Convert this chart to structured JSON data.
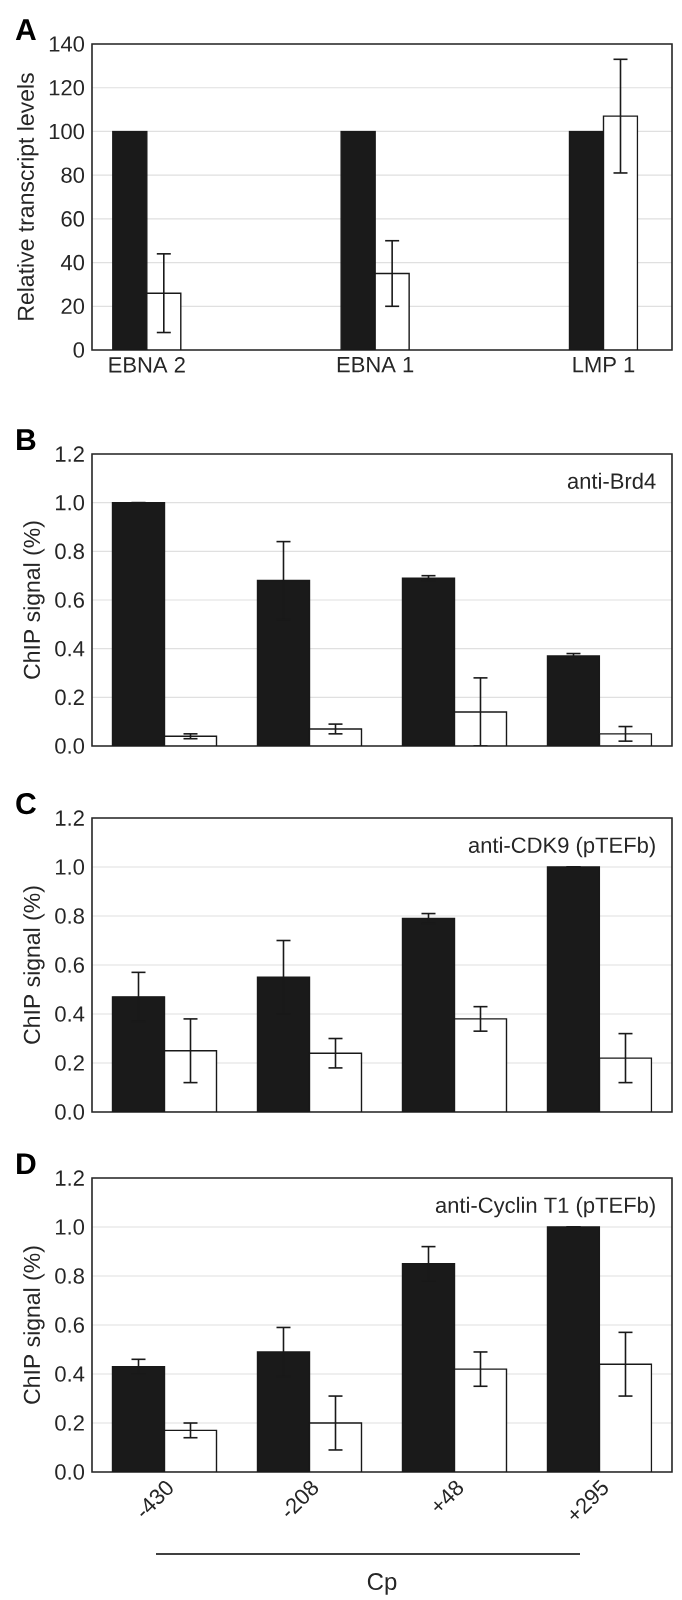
{
  "chart_data": [
    {
      "type": "bar",
      "title": "A",
      "ylabel": "Relative transcript levels",
      "categories": [
        "EBNA 2",
        "EBNA 1",
        "LMP 1"
      ],
      "series": [
        {
          "color": "#1a1a1a",
          "values": [
            100,
            100,
            100
          ]
        },
        {
          "color": "#ffffff",
          "values": [
            26,
            35,
            107
          ],
          "errors": [
            18,
            15,
            26
          ]
        }
      ],
      "ylim": [
        0,
        140
      ],
      "yticks": [
        0,
        20,
        40,
        60,
        80,
        100,
        120,
        140
      ],
      "grid": "y"
    },
    {
      "type": "bar",
      "title": "B",
      "ylabel": "ChIP signal (%)",
      "annotations": [
        "anti-Brd4"
      ],
      "categories": [
        "-430",
        "-208",
        "+48",
        "+295"
      ],
      "series": [
        {
          "color": "#1a1a1a",
          "values": [
            1.0,
            0.68,
            0.69,
            0.37
          ],
          "errors": [
            null,
            0.16,
            0.01,
            0.01
          ]
        },
        {
          "color": "#ffffff",
          "values": [
            0.04,
            0.07,
            0.14,
            0.05
          ],
          "errors": [
            0.01,
            0.02,
            0.14,
            0.03
          ]
        }
      ],
      "ylim": [
        0,
        1.2
      ],
      "yticks": [
        {
          "value": 0,
          "label": "0.0"
        },
        {
          "value": 0.2,
          "label": "0.2"
        },
        {
          "value": 0.4,
          "label": "0.4"
        },
        {
          "value": 0.6,
          "label": "0.6"
        },
        {
          "value": 0.8,
          "label": "0.8"
        },
        {
          "value": 1.0,
          "label": "1.0"
        },
        {
          "value": 1.2,
          "label": "1.2"
        }
      ],
      "grid": "y",
      "tick_labels": "y"
    },
    {
      "type": "bar",
      "title": "C",
      "ylabel": "ChIP signal (%)",
      "annotations": [
        "anti-CDK9 (pTEFb)"
      ],
      "categories": [
        "-430",
        "-208",
        "+48",
        "+295"
      ],
      "series": [
        {
          "color": "#1a1a1a",
          "values": [
            0.47,
            0.55,
            0.79,
            1.0
          ],
          "errors": [
            0.1,
            0.15,
            0.02,
            null
          ]
        },
        {
          "color": "#ffffff",
          "values": [
            0.25,
            0.24,
            0.38,
            0.22
          ],
          "errors": [
            0.13,
            0.06,
            0.05,
            0.1
          ]
        }
      ],
      "ylim": [
        0,
        1.2
      ],
      "yticks": [
        {
          "value": 0,
          "label": "0.0"
        },
        {
          "value": 0.2,
          "label": "0.2"
        },
        {
          "value": 0.4,
          "label": "0.4"
        },
        {
          "value": 0.6,
          "label": "0.6"
        },
        {
          "value": 0.8,
          "label": "0.8"
        },
        {
          "value": 1.0,
          "label": "1.0"
        },
        {
          "value": 1.2,
          "label": "1.2"
        }
      ],
      "grid": "y",
      "tick_labels": "y"
    },
    {
      "type": "bar",
      "title": "D",
      "ylabel": "ChIP signal (%)",
      "xlabel": "Cp",
      "annotations": [
        "anti-Cyclin T1 (pTEFb)"
      ],
      "categories": [
        "-430",
        "-208",
        "+48",
        "+295"
      ],
      "series": [
        {
          "color": "#1a1a1a",
          "values": [
            0.43,
            0.49,
            0.85,
            1.0
          ],
          "errors": [
            0.03,
            0.1,
            0.07,
            null
          ]
        },
        {
          "color": "#ffffff",
          "values": [
            0.17,
            0.2,
            0.42,
            0.44
          ],
          "errors": [
            0.03,
            0.11,
            0.07,
            0.13
          ]
        }
      ],
      "ylim": [
        0,
        1.2
      ],
      "yticks": [
        {
          "value": 0,
          "label": "0.0"
        },
        {
          "value": 0.2,
          "label": "0.2"
        },
        {
          "value": 0.4,
          "label": "0.4"
        },
        {
          "value": 0.6,
          "label": "0.6"
        },
        {
          "value": 0.8,
          "label": "0.8"
        },
        {
          "value": 1.0,
          "label": "1.0"
        },
        {
          "value": 1.2,
          "label": "1.2"
        }
      ],
      "grid": "y"
    }
  ]
}
